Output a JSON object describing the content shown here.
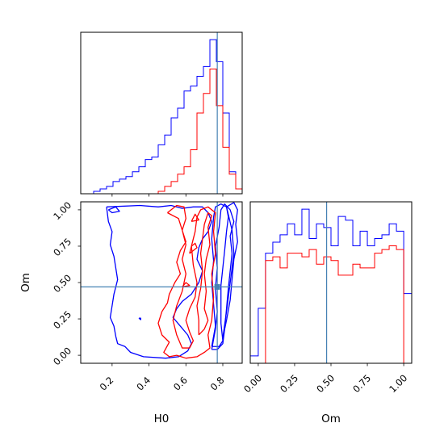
{
  "chart_data": {
    "type": "corner",
    "parameters": [
      "H0",
      "Om"
    ],
    "truths": {
      "H0": 0.77,
      "Om": 0.47
    },
    "truth_color": "#4682b4",
    "series": [
      {
        "color": "#0000ff"
      },
      {
        "color": "#ff0000"
      }
    ],
    "panels": [
      {
        "id": "hist-H0",
        "type": "histogram",
        "xlim": [
          0.03,
          0.905
        ],
        "bins": [
          0.03,
          0.065,
          0.1,
          0.135,
          0.17,
          0.205,
          0.24,
          0.275,
          0.31,
          0.345,
          0.38,
          0.415,
          0.45,
          0.485,
          0.52,
          0.555,
          0.59,
          0.625,
          0.66,
          0.695,
          0.73,
          0.765,
          0.8,
          0.835,
          0.87,
          0.905
        ],
        "series_values": [
          [
            0,
            0,
            1,
            2,
            3,
            5,
            6,
            7,
            9,
            11,
            14,
            15,
            20,
            24,
            31,
            35,
            42,
            44,
            48,
            52,
            63,
            54,
            33,
            9,
            2
          ],
          [
            0,
            0,
            0,
            0,
            0,
            0,
            0,
            0,
            0,
            0,
            0,
            0,
            1,
            3,
            5,
            8,
            11,
            18,
            33,
            41,
            51,
            36,
            19,
            8,
            2
          ]
        ],
        "ymax": 66,
        "xticks": [
          0.2,
          0.4,
          0.6,
          0.8
        ]
      },
      {
        "id": "contour-H0-Om",
        "type": "contour",
        "xlim": [
          0.03,
          0.905
        ],
        "ylim": [
          -0.055,
          1.055
        ],
        "xticks": [
          0.2,
          0.4,
          0.6,
          0.8
        ],
        "yticks": [
          0.0,
          0.25,
          0.5,
          0.75,
          1.0
        ],
        "xtick_labels": [
          "0.2",
          "0.4",
          "0.6",
          "0.8"
        ],
        "ytick_labels": [
          "0.00",
          "0.25",
          "0.50",
          "0.75",
          "1.00"
        ],
        "xlabel": "H0",
        "ylabel": "Om",
        "contours": [
          {
            "series": 0,
            "points": [
              [
                0.17,
                1.02
              ],
              [
                0.35,
                1.03
              ],
              [
                0.45,
                1.02
              ],
              [
                0.52,
                1.03
              ],
              [
                0.58,
                1.01
              ],
              [
                0.64,
                1.02
              ],
              [
                0.69,
                1.02
              ],
              [
                0.72,
                0.98
              ],
              [
                0.74,
                0.92
              ],
              [
                0.72,
                0.85
              ],
              [
                0.69,
                0.8
              ],
              [
                0.67,
                0.74
              ],
              [
                0.66,
                0.66
              ],
              [
                0.69,
                0.58
              ],
              [
                0.67,
                0.5
              ],
              [
                0.63,
                0.42
              ],
              [
                0.58,
                0.37
              ],
              [
                0.55,
                0.32
              ],
              [
                0.53,
                0.26
              ],
              [
                0.57,
                0.2
              ],
              [
                0.61,
                0.14
              ],
              [
                0.63,
                0.08
              ],
              [
                0.61,
                0.03
              ],
              [
                0.56,
                -0.01
              ],
              [
                0.49,
                -0.02
              ],
              [
                0.37,
                -0.01
              ],
              [
                0.3,
                0.02
              ],
              [
                0.27,
                0.06
              ],
              [
                0.23,
                0.08
              ],
              [
                0.22,
                0.13
              ],
              [
                0.21,
                0.2
              ],
              [
                0.19,
                0.26
              ],
              [
                0.2,
                0.34
              ],
              [
                0.21,
                0.42
              ],
              [
                0.23,
                0.52
              ],
              [
                0.22,
                0.6
              ],
              [
                0.21,
                0.68
              ],
              [
                0.19,
                0.76
              ],
              [
                0.2,
                0.85
              ],
              [
                0.18,
                0.92
              ],
              [
                0.17,
                1.02
              ]
            ]
          },
          {
            "series": 0,
            "points": [
              [
                0.18,
                1.0
              ],
              [
                0.2,
                0.98
              ],
              [
                0.24,
                0.99
              ],
              [
                0.22,
                1.02
              ],
              [
                0.18,
                1.0
              ]
            ]
          },
          {
            "series": 0,
            "points": [
              [
                0.345,
                0.255
              ],
              [
                0.355,
                0.245
              ],
              [
                0.355,
                0.255
              ],
              [
                0.345,
                0.255
              ]
            ]
          },
          {
            "series": 0,
            "points": [
              [
                0.74,
                0.06
              ],
              [
                0.76,
                0.2
              ],
              [
                0.75,
                0.35
              ],
              [
                0.74,
                0.5
              ],
              [
                0.75,
                0.65
              ],
              [
                0.74,
                0.8
              ],
              [
                0.75,
                0.95
              ],
              [
                0.76,
                1.02
              ],
              [
                0.79,
                1.04
              ],
              [
                0.82,
                1.02
              ],
              [
                0.83,
                0.95
              ],
              [
                0.82,
                0.85
              ],
              [
                0.81,
                0.72
              ],
              [
                0.8,
                0.6
              ],
              [
                0.79,
                0.48
              ],
              [
                0.79,
                0.36
              ],
              [
                0.79,
                0.22
              ],
              [
                0.8,
                0.1
              ],
              [
                0.78,
                0.06
              ],
              [
                0.74,
                0.06
              ]
            ]
          },
          {
            "series": 0,
            "points": [
              [
                0.74,
                0.04
              ],
              [
                0.76,
                0.18
              ],
              [
                0.77,
                0.3
              ],
              [
                0.76,
                0.46
              ],
              [
                0.77,
                0.6
              ],
              [
                0.76,
                0.75
              ],
              [
                0.78,
                0.88
              ],
              [
                0.79,
                1.0
              ],
              [
                0.81,
                1.04
              ],
              [
                0.84,
                1.0
              ],
              [
                0.86,
                0.92
              ],
              [
                0.84,
                0.82
              ],
              [
                0.85,
                0.7
              ],
              [
                0.84,
                0.58
              ],
              [
                0.83,
                0.46
              ],
              [
                0.82,
                0.32
              ],
              [
                0.81,
                0.18
              ],
              [
                0.8,
                0.08
              ],
              [
                0.77,
                0.04
              ],
              [
                0.74,
                0.04
              ]
            ]
          },
          {
            "series": 0,
            "points": [
              [
                0.82,
                1.02
              ],
              [
                0.86,
                1.05
              ],
              [
                0.88,
                1.0
              ],
              [
                0.87,
                0.9
              ],
              [
                0.88,
                0.78
              ],
              [
                0.86,
                0.66
              ],
              [
                0.85,
                0.52
              ],
              [
                0.84,
                0.38
              ],
              [
                0.82,
                0.24
              ],
              [
                0.8,
                0.12
              ],
              [
                0.82,
                0.3
              ],
              [
                0.84,
                0.5
              ],
              [
                0.86,
                0.7
              ],
              [
                0.85,
                0.86
              ],
              [
                0.82,
                1.02
              ]
            ]
          },
          {
            "series": 1,
            "points": [
              [
                0.5,
                0.98
              ],
              [
                0.55,
                1.03
              ],
              [
                0.59,
                1.02
              ],
              [
                0.6,
                0.94
              ],
              [
                0.58,
                0.86
              ],
              [
                0.6,
                0.78
              ],
              [
                0.57,
                0.72
              ],
              [
                0.55,
                0.64
              ],
              [
                0.57,
                0.56
              ],
              [
                0.54,
                0.5
              ],
              [
                0.51,
                0.42
              ],
              [
                0.5,
                0.36
              ],
              [
                0.47,
                0.3
              ],
              [
                0.45,
                0.22
              ],
              [
                0.47,
                0.14
              ],
              [
                0.51,
                0.09
              ],
              [
                0.48,
                0.02
              ],
              [
                0.51,
                -0.01
              ],
              [
                0.55,
                0.0
              ],
              [
                0.6,
                -0.02
              ],
              [
                0.66,
                -0.01
              ],
              [
                0.7,
                0.02
              ],
              [
                0.73,
                0.05
              ],
              [
                0.72,
                0.14
              ],
              [
                0.74,
                0.24
              ],
              [
                0.75,
                0.4
              ],
              [
                0.74,
                0.56
              ],
              [
                0.76,
                0.7
              ],
              [
                0.75,
                0.85
              ],
              [
                0.76,
                0.98
              ],
              [
                0.72,
                1.02
              ],
              [
                0.68,
                1.0
              ],
              [
                0.66,
                0.95
              ],
              [
                0.65,
                0.85
              ],
              [
                0.63,
                0.75
              ],
              [
                0.64,
                0.62
              ],
              [
                0.66,
                0.5
              ],
              [
                0.65,
                0.4
              ],
              [
                0.62,
                0.32
              ],
              [
                0.6,
                0.24
              ],
              [
                0.62,
                0.16
              ],
              [
                0.64,
                0.1
              ],
              [
                0.62,
                0.05
              ],
              [
                0.58,
                0.05
              ],
              [
                0.55,
                0.14
              ],
              [
                0.53,
                0.24
              ],
              [
                0.55,
                0.34
              ],
              [
                0.58,
                0.44
              ],
              [
                0.6,
                0.56
              ],
              [
                0.58,
                0.66
              ],
              [
                0.6,
                0.76
              ],
              [
                0.58,
                0.86
              ],
              [
                0.56,
                0.94
              ],
              [
                0.5,
                0.98
              ]
            ]
          },
          {
            "series": 1,
            "points": [
              [
                0.63,
                0.92
              ],
              [
                0.67,
                0.93
              ],
              [
                0.65,
                0.97
              ],
              [
                0.63,
                0.92
              ]
            ]
          },
          {
            "series": 1,
            "points": [
              [
                0.62,
                0.7
              ],
              [
                0.64,
                0.72
              ],
              [
                0.66,
                0.74
              ],
              [
                0.65,
                0.77
              ],
              [
                0.63,
                0.75
              ],
              [
                0.62,
                0.7
              ]
            ]
          },
          {
            "series": 1,
            "points": [
              [
                0.58,
                0.47
              ],
              [
                0.62,
                0.48
              ],
              [
                0.6,
                0.5
              ],
              [
                0.58,
                0.47
              ]
            ]
          },
          {
            "series": 1,
            "points": [
              [
                0.67,
                0.14
              ],
              [
                0.7,
                0.18
              ],
              [
                0.72,
                0.24
              ],
              [
                0.7,
                0.32
              ],
              [
                0.71,
                0.44
              ],
              [
                0.7,
                0.56
              ],
              [
                0.71,
                0.66
              ],
              [
                0.73,
                0.76
              ],
              [
                0.72,
                0.88
              ],
              [
                0.74,
                0.96
              ],
              [
                0.72,
                0.98
              ],
              [
                0.7,
                0.9
              ],
              [
                0.69,
                0.8
              ],
              [
                0.68,
                0.7
              ],
              [
                0.69,
                0.58
              ],
              [
                0.68,
                0.46
              ],
              [
                0.66,
                0.34
              ],
              [
                0.67,
                0.24
              ],
              [
                0.67,
                0.14
              ]
            ]
          }
        ]
      },
      {
        "id": "hist-Om",
        "type": "histogram",
        "xlim": [
          -0.055,
          1.055
        ],
        "bins": [
          -0.055,
          0.0,
          0.05,
          0.1,
          0.15,
          0.2,
          0.25,
          0.3,
          0.35,
          0.4,
          0.45,
          0.5,
          0.55,
          0.6,
          0.65,
          0.7,
          0.75,
          0.8,
          0.85,
          0.9,
          0.95,
          1.0,
          1.055
        ],
        "series_values": [
          [
            2,
            15,
            30,
            33,
            35,
            38,
            35,
            42,
            34,
            38,
            37,
            32,
            40,
            39,
            32,
            36,
            32,
            34,
            35,
            38,
            36,
            19
          ],
          [
            0,
            0,
            28,
            29,
            26,
            30,
            30,
            29,
            31,
            27,
            29,
            28,
            24,
            24,
            27,
            26,
            26,
            30,
            31,
            32,
            31,
            0
          ]
        ],
        "ymax": 44,
        "xticks": [
          0.0,
          0.25,
          0.5,
          0.75,
          1.0
        ],
        "xtick_labels": [
          "0.00",
          "0.25",
          "0.50",
          "0.75",
          "1.00"
        ],
        "xlabel": "Om"
      }
    ]
  }
}
